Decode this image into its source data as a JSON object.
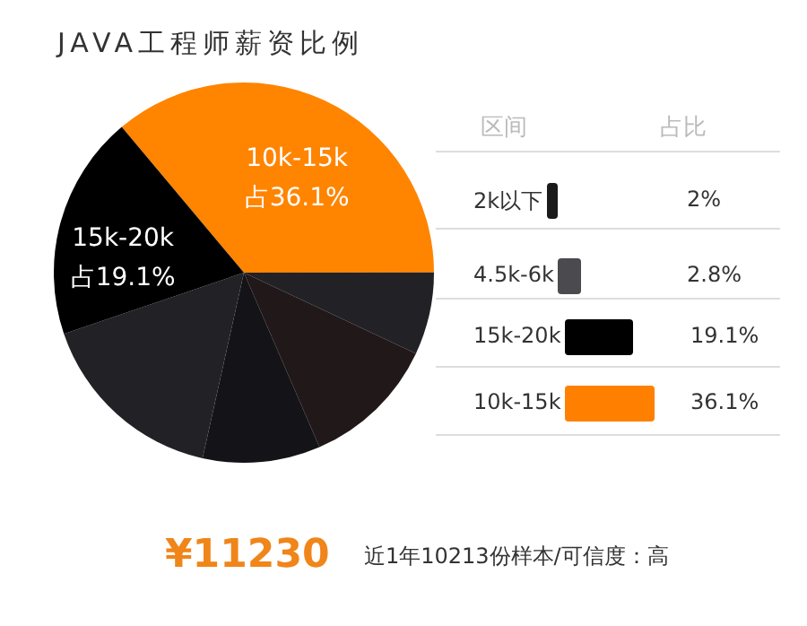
{
  "chart_data": {
    "type": "pie",
    "title": "JAVA工程师薪资比例",
    "categories": [
      "10k-15k",
      null,
      null,
      null,
      null,
      "15k-20k"
    ],
    "values": [
      36.1,
      7.0,
      11.5,
      10.0,
      16.3,
      19.1
    ],
    "colors": [
      "#ff8400",
      "#222126",
      "#211819",
      "#141318",
      "#222226",
      "#000000"
    ],
    "value_labels": [
      "占36.1%",
      null,
      null,
      null,
      null,
      "占19.1%"
    ],
    "annotations": [
      "区间",
      "占比",
      "2k以下",
      "2%",
      "4.5k-6k",
      "2.8%",
      "15k-20k",
      "19.1%",
      "10k-15k",
      "36.1%",
      "¥11230",
      "近1年10213份样本/可信度：高"
    ]
  }
}
